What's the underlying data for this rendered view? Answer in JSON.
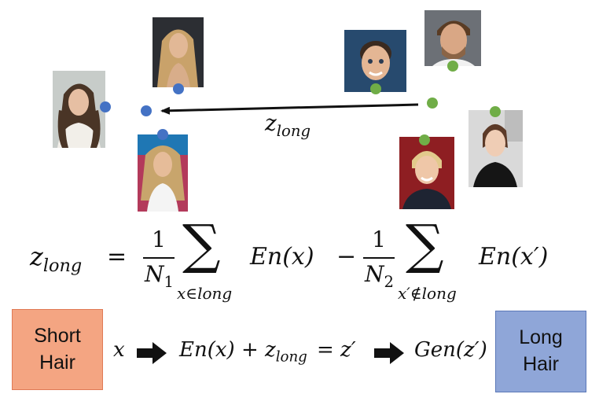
{
  "colors": {
    "long_cluster_dot": "#4472c4",
    "short_cluster_dot": "#70ad47",
    "short_hair_box": "#f4a582",
    "long_hair_box": "#8fa6d8"
  },
  "diagram": {
    "vector_label": {
      "base": "z",
      "subscript": "long"
    },
    "formula": {
      "lhs": {
        "base": "z",
        "subscript": "long"
      },
      "equals": "=",
      "term1": {
        "numerator": "1",
        "denominator_base": "N",
        "denominator_sub": "1",
        "sum_symbol": "∑",
        "sum_index": "x∈long",
        "summand": "En(x)"
      },
      "minus": "−",
      "term2": {
        "numerator": "1",
        "denominator_base": "N",
        "denominator_sub": "2",
        "sum_symbol": "∑",
        "sum_index": "x′∉long",
        "summand": "En(x′)"
      }
    },
    "pipeline": {
      "input_box": {
        "line1": "Short",
        "line2": "Hair"
      },
      "x": "x",
      "encoded": "En(x) + ",
      "encoded_z": {
        "base": "z",
        "subscript": "long"
      },
      "eq_z": "= z′",
      "gen": "Gen(z′)",
      "output_box": {
        "line1": "Long",
        "line2": "Hair"
      }
    }
  }
}
